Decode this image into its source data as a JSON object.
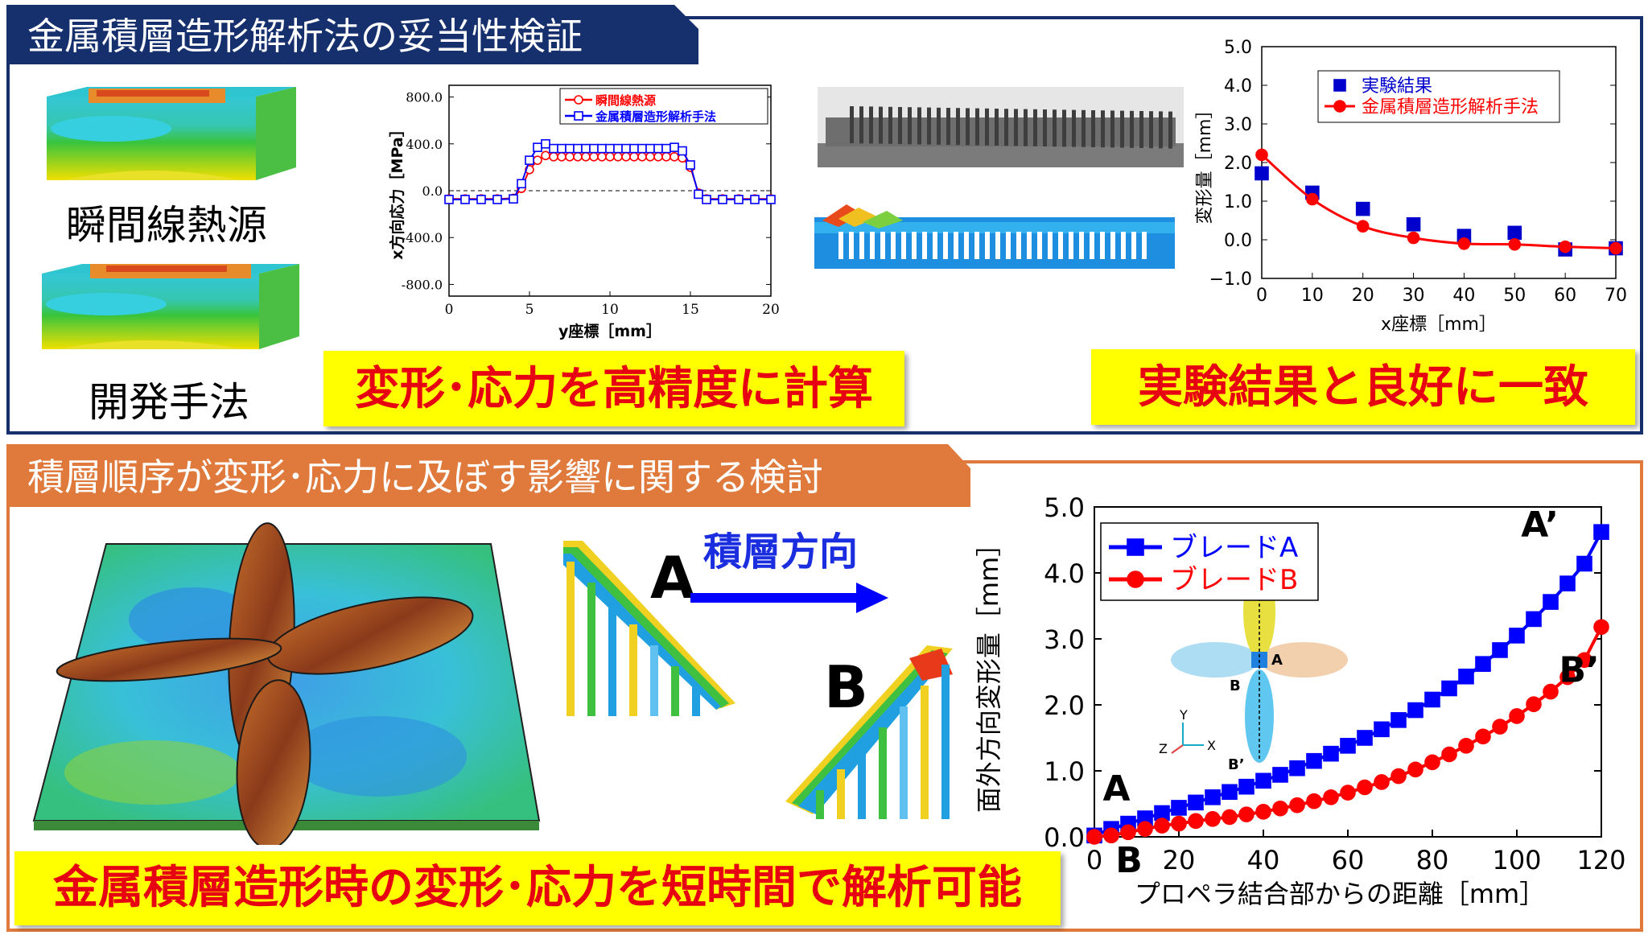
{
  "top": {
    "title": "金属積層造形解析法の妥当性検証",
    "label_instant": "瞬間線熱源",
    "label_developed": "開発手法",
    "banner_left": "変形･応力を高精度に計算",
    "banner_right": "実験結果と良好に一致"
  },
  "bottom": {
    "title": "積層順序が変形･応力に及ぼす影響に関する検討",
    "direction_label": "積層方向",
    "label_a": "A",
    "label_b": "B",
    "banner": "金属積層造形時の変形･応力を短時間で解析可能",
    "inset": {
      "a_prime": "A’",
      "a": "A",
      "b": "B",
      "b_prime": "B’",
      "axis_y": "Y",
      "axis_x": "X",
      "axis_z": "Z"
    }
  },
  "colors": {
    "navy": "#16306e",
    "orange": "#e07a3c",
    "banner_yellow": "#ffff00",
    "banner_red": "#e60012",
    "series_blue": "#0000ff",
    "series_red": "#ff0000"
  },
  "chart_data": [
    {
      "type": "line",
      "xlabel": "y座標［mm］",
      "ylabel": "x方向応力［MPa］",
      "xlim": [
        0,
        20
      ],
      "ylim": [
        -900,
        900
      ],
      "xticks": [
        0,
        5,
        10,
        15,
        20
      ],
      "yticks": [
        -800,
        -400,
        0,
        400,
        800
      ],
      "ytick_labels": [
        "-800.0",
        "-400.0",
        "0.0",
        "400.0",
        "800.0"
      ],
      "legend_position": "top-right",
      "zero_line": "dashed",
      "series": [
        {
          "name": "瞬間線熱源",
          "marker": "circle-open",
          "color": "#ff0000",
          "x": [
            0,
            1,
            2,
            3,
            4,
            4.5,
            5,
            5.5,
            6,
            6.5,
            7,
            7.5,
            8,
            8.5,
            9,
            9.5,
            10,
            10.5,
            11,
            11.5,
            12,
            12.5,
            13,
            13.5,
            14,
            14.5,
            15,
            15.5,
            16,
            17,
            18,
            19,
            20
          ],
          "y": [
            -70,
            -70,
            -70,
            -70,
            -65,
            20,
            180,
            260,
            300,
            290,
            290,
            290,
            290,
            290,
            290,
            290,
            290,
            290,
            290,
            290,
            290,
            290,
            290,
            290,
            290,
            280,
            200,
            -20,
            -70,
            -70,
            -70,
            -70,
            -70
          ]
        },
        {
          "name": "金属積層造形解析手法",
          "marker": "square-open",
          "color": "#0000ff",
          "x": [
            0,
            1,
            2,
            3,
            4,
            4.5,
            5,
            5.5,
            6,
            6.5,
            7,
            7.5,
            8,
            8.5,
            9,
            9.5,
            10,
            10.5,
            11,
            11.5,
            12,
            12.5,
            13,
            13.5,
            14,
            14.5,
            15,
            15.5,
            16,
            17,
            18,
            19,
            20
          ],
          "y": [
            -75,
            -75,
            -75,
            -75,
            -70,
            60,
            260,
            370,
            400,
            360,
            360,
            360,
            360,
            360,
            360,
            360,
            360,
            360,
            360,
            360,
            360,
            360,
            360,
            360,
            370,
            340,
            220,
            -30,
            -75,
            -75,
            -75,
            -75,
            -75
          ]
        }
      ]
    },
    {
      "type": "line",
      "xlabel": "x座標［mm］",
      "ylabel": "変形量［mm］",
      "xlim": [
        0,
        70
      ],
      "ylim": [
        -1.0,
        5.0
      ],
      "xticks": [
        0,
        10,
        20,
        30,
        40,
        50,
        60,
        70
      ],
      "yticks": [
        -1.0,
        0.0,
        1.0,
        2.0,
        3.0,
        4.0,
        5.0
      ],
      "ytick_labels": [
        "−1.0",
        "0.0",
        "1.0",
        "2.0",
        "3.0",
        "4.0",
        "5.0"
      ],
      "legend_position": "top-right",
      "series": [
        {
          "name": "実験結果",
          "marker": "square-filled",
          "line": false,
          "color": "#0000cc",
          "x": [
            0,
            10,
            20,
            30,
            40,
            50,
            60,
            70
          ],
          "y": [
            1.72,
            1.22,
            0.8,
            0.4,
            0.1,
            0.18,
            -0.25,
            -0.22
          ]
        },
        {
          "name": "金属積層造形解析手法",
          "marker": "circle-filled",
          "line": true,
          "color": "#ff0000",
          "x": [
            0,
            10,
            20,
            30,
            40,
            50,
            60,
            70
          ],
          "y": [
            2.2,
            1.05,
            0.35,
            0.05,
            -0.1,
            -0.12,
            -0.18,
            -0.22
          ]
        }
      ]
    },
    {
      "type": "line",
      "xlabel": "プロペラ結合部からの距離［mm］",
      "ylabel": "面外方向変形量［mm］",
      "xlim": [
        0,
        120
      ],
      "ylim": [
        0,
        5.0
      ],
      "xticks": [
        0,
        20,
        40,
        60,
        80,
        100,
        120
      ],
      "yticks": [
        0,
        1.0,
        2.0,
        3.0,
        4.0,
        5.0
      ],
      "ytick_labels": [
        "0.0",
        "1.0",
        "2.0",
        "3.0",
        "4.0",
        "5.0"
      ],
      "legend_position": "top-left",
      "series": [
        {
          "name": "ブレードA",
          "marker": "square-filled",
          "color": "#0000ff",
          "x": [
            0,
            4,
            8,
            12,
            16,
            20,
            24,
            28,
            32,
            36,
            40,
            44,
            48,
            52,
            56,
            60,
            64,
            68,
            72,
            76,
            80,
            84,
            88,
            92,
            96,
            100,
            104,
            108,
            112,
            116,
            120
          ],
          "y": [
            0.02,
            0.12,
            0.2,
            0.28,
            0.36,
            0.44,
            0.52,
            0.6,
            0.68,
            0.76,
            0.85,
            0.94,
            1.04,
            1.15,
            1.26,
            1.38,
            1.5,
            1.63,
            1.77,
            1.92,
            2.08,
            2.25,
            2.43,
            2.62,
            2.83,
            3.05,
            3.3,
            3.56,
            3.84,
            4.14,
            4.62
          ]
        },
        {
          "name": "ブレードB",
          "marker": "circle-filled",
          "color": "#ff0000",
          "x": [
            0,
            4,
            8,
            12,
            16,
            20,
            24,
            28,
            32,
            36,
            40,
            44,
            48,
            52,
            56,
            60,
            64,
            68,
            72,
            76,
            80,
            84,
            88,
            92,
            96,
            100,
            104,
            108,
            112,
            116,
            120
          ],
          "y": [
            0.0,
            0.02,
            0.07,
            0.12,
            0.17,
            0.2,
            0.24,
            0.27,
            0.3,
            0.34,
            0.38,
            0.43,
            0.48,
            0.54,
            0.6,
            0.67,
            0.75,
            0.83,
            0.92,
            1.02,
            1.13,
            1.25,
            1.38,
            1.52,
            1.67,
            1.83,
            2.01,
            2.2,
            2.42,
            2.68,
            3.18
          ]
        }
      ]
    }
  ]
}
